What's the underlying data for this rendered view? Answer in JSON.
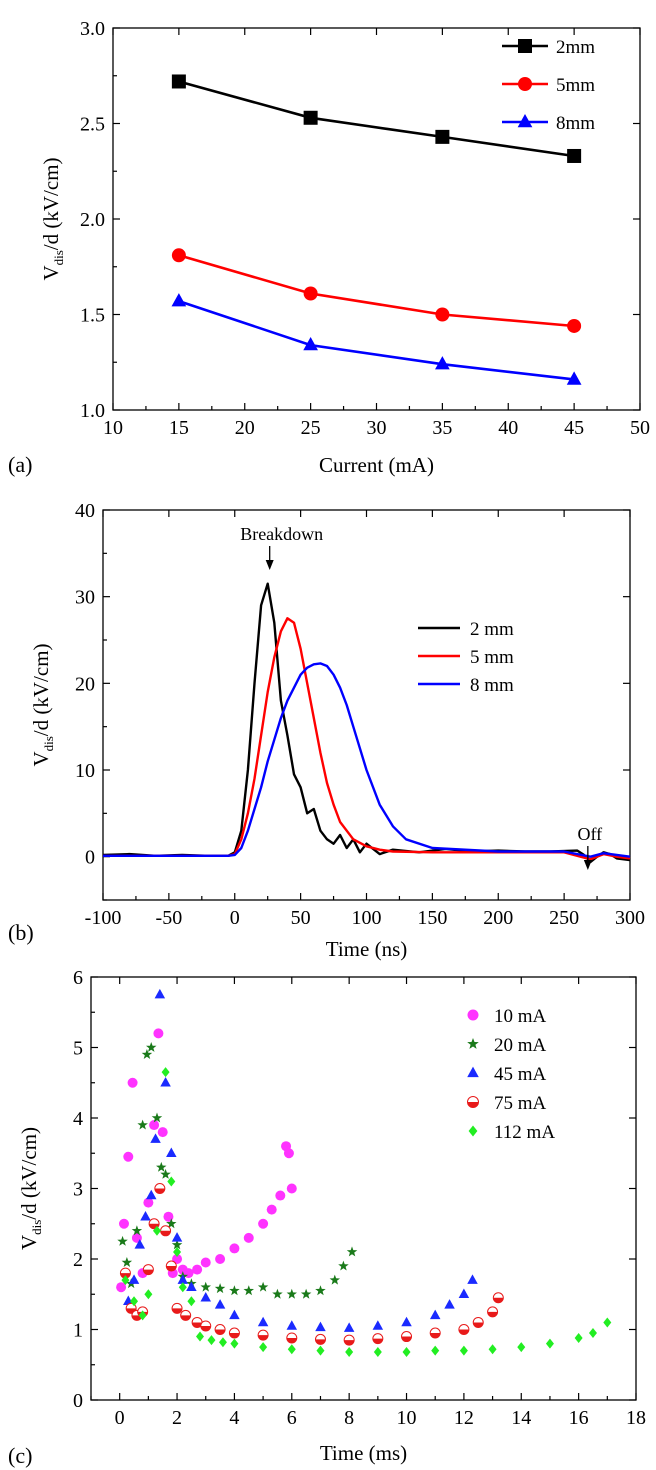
{
  "chart_data": [
    {
      "panel": "(a)",
      "type": "line",
      "xlabel": "Current (mA)",
      "ylabel_main": "V",
      "ylabel_sub": "dis",
      "ylabel_rest": "/d (kV/cm)",
      "xlim": [
        10,
        50
      ],
      "ylim": [
        1.0,
        3.0
      ],
      "xticks": [
        "10",
        "15",
        "20",
        "25",
        "30",
        "35",
        "40",
        "45",
        "50"
      ],
      "yticks": [
        "1.0",
        "1.5",
        "2.0",
        "2.5",
        "3.0"
      ],
      "legend_position": "top-right",
      "x": [
        15,
        25,
        35,
        45
      ],
      "series": [
        {
          "name": "2mm",
          "color": "#000000",
          "marker": "square",
          "values": [
            2.72,
            2.53,
            2.43,
            2.33
          ]
        },
        {
          "name": "5mm",
          "color": "#ff0000",
          "marker": "circle",
          "values": [
            1.81,
            1.61,
            1.5,
            1.44
          ]
        },
        {
          "name": "8mm",
          "color": "#0000ff",
          "marker": "triangle",
          "values": [
            1.57,
            1.34,
            1.24,
            1.16
          ]
        }
      ]
    },
    {
      "panel": "(b)",
      "type": "line",
      "xlabel": "Time (ns)",
      "ylabel_main": "V",
      "ylabel_sub": "dis",
      "ylabel_rest": "/d (kV/cm)",
      "xlim": [
        -100,
        300
      ],
      "ylim": [
        -5,
        40
      ],
      "xticks": [
        "-100",
        "-50",
        "0",
        "50",
        "100",
        "150",
        "200",
        "250",
        "300"
      ],
      "yticks": [
        "0",
        "10",
        "20",
        "30",
        "40"
      ],
      "legend_position": "center-right",
      "annotations": [
        {
          "text": "Breakdown",
          "x": 25,
          "y": 31.5
        },
        {
          "text": "Off",
          "x": 268,
          "y": 0
        }
      ],
      "series": [
        {
          "name": "2 mm",
          "color": "#000000",
          "x": [
            -100,
            -80,
            -60,
            -40,
            -20,
            -5,
            0,
            5,
            10,
            15,
            20,
            25,
            30,
            35,
            40,
            45,
            50,
            55,
            60,
            65,
            70,
            75,
            80,
            85,
            90,
            95,
            100,
            110,
            120,
            140,
            160,
            180,
            200,
            220,
            240,
            260,
            265,
            270,
            275,
            280,
            285,
            290,
            300
          ],
          "y": [
            0.2,
            0.3,
            0.1,
            0.2,
            0.1,
            0.1,
            0.5,
            3,
            10,
            20,
            29,
            31.5,
            27,
            18,
            14,
            9.5,
            8,
            5,
            5.5,
            3,
            2,
            1.5,
            2.5,
            1,
            2,
            0.5,
            1.5,
            0.3,
            0.8,
            0.5,
            0.9,
            0.6,
            0.7,
            0.6,
            0.6,
            0.7,
            0.2,
            -0.6,
            0,
            0.5,
            0.3,
            -0.2,
            -0.4
          ]
        },
        {
          "name": "5 mm",
          "color": "#ff0000",
          "x": [
            -100,
            -50,
            -5,
            0,
            5,
            10,
            15,
            20,
            25,
            30,
            35,
            40,
            45,
            50,
            55,
            60,
            65,
            70,
            75,
            80,
            90,
            100,
            110,
            120,
            150,
            200,
            250,
            270,
            280,
            290,
            300
          ],
          "y": [
            0.1,
            0.1,
            0.1,
            0.3,
            2,
            5,
            9,
            14,
            19,
            23,
            26,
            27.5,
            27,
            24,
            20,
            16,
            12,
            8.5,
            6,
            4,
            2,
            1.2,
            0.8,
            0.6,
            0.5,
            0.5,
            0.5,
            -0.3,
            0.3,
            0,
            -0.2
          ]
        },
        {
          "name": "8 mm",
          "color": "#0000ff",
          "x": [
            -100,
            -50,
            -5,
            0,
            5,
            10,
            15,
            20,
            25,
            30,
            35,
            40,
            45,
            50,
            55,
            60,
            65,
            70,
            75,
            80,
            85,
            90,
            95,
            100,
            110,
            120,
            130,
            150,
            200,
            250,
            270,
            280,
            300
          ],
          "y": [
            0.1,
            0.1,
            0.1,
            0.2,
            1,
            3,
            5.5,
            8,
            11,
            13.5,
            16,
            18,
            19.5,
            21,
            21.8,
            22.2,
            22.3,
            22,
            21,
            19.5,
            17.5,
            15,
            12.5,
            10,
            6,
            3.5,
            2,
            1,
            0.6,
            0.6,
            0,
            0.4,
            0
          ]
        }
      ]
    },
    {
      "panel": "(c)",
      "type": "scatter",
      "xlabel": "Time (ms)",
      "ylabel_main": "V",
      "ylabel_sub": "dis",
      "ylabel_rest": "/d (kV/cm)",
      "xlim": [
        -1,
        18
      ],
      "ylim": [
        0,
        6
      ],
      "xticks": [
        "0",
        "2",
        "4",
        "6",
        "8",
        "10",
        "12",
        "14",
        "16",
        "18"
      ],
      "yticks": [
        "0",
        "1",
        "2",
        "3",
        "4",
        "5",
        "6"
      ],
      "legend_position": "top-right",
      "series": [
        {
          "name": "10 mA",
          "color": "#ff33ff",
          "marker": "circle",
          "x": [
            0.05,
            0.15,
            0.3,
            0.45,
            0.6,
            0.8,
            1.0,
            1.2,
            1.35,
            1.5,
            1.7,
            1.85,
            2.0,
            2.2,
            2.4,
            2.7,
            3.0,
            3.5,
            4.0,
            4.5,
            5.0,
            5.3,
            5.6,
            5.8,
            5.9,
            6.0
          ],
          "y": [
            1.6,
            2.5,
            3.45,
            4.5,
            2.3,
            1.8,
            2.8,
            3.9,
            5.2,
            3.8,
            2.6,
            1.8,
            2.0,
            1.85,
            1.8,
            1.85,
            1.95,
            2.0,
            2.15,
            2.3,
            2.5,
            2.7,
            2.9,
            3.6,
            3.5,
            3.0
          ]
        },
        {
          "name": "20 mA",
          "color": "#1a7a1a",
          "marker": "star",
          "x": [
            0.1,
            0.25,
            0.4,
            0.6,
            0.8,
            0.95,
            1.1,
            1.3,
            1.45,
            1.6,
            1.8,
            2.0,
            2.2,
            2.5,
            3.0,
            3.5,
            4.0,
            4.5,
            5.0,
            5.5,
            6.0,
            6.5,
            7.0,
            7.5,
            7.8,
            8.1
          ],
          "y": [
            2.25,
            1.95,
            1.65,
            2.4,
            3.9,
            4.9,
            5.0,
            4.0,
            3.3,
            3.2,
            2.5,
            2.2,
            1.75,
            1.65,
            1.6,
            1.58,
            1.55,
            1.55,
            1.6,
            1.5,
            1.5,
            1.5,
            1.55,
            1.7,
            1.9,
            2.1
          ]
        },
        {
          "name": "45 mA",
          "color": "#1a2aff",
          "marker": "triangle",
          "x": [
            0.3,
            0.5,
            0.7,
            0.9,
            1.1,
            1.25,
            1.4,
            1.6,
            1.8,
            2.0,
            2.2,
            2.5,
            3.0,
            3.5,
            4.0,
            5.0,
            6.0,
            7.0,
            8.0,
            9.0,
            10.0,
            11.0,
            11.5,
            12.0,
            12.3
          ],
          "y": [
            1.4,
            1.7,
            2.2,
            2.6,
            2.9,
            3.7,
            5.75,
            4.5,
            3.5,
            2.3,
            1.7,
            1.6,
            1.45,
            1.35,
            1.2,
            1.1,
            1.05,
            1.03,
            1.02,
            1.05,
            1.1,
            1.2,
            1.35,
            1.5,
            1.7
          ]
        },
        {
          "name": "75 mA",
          "color": "#e81a1a",
          "marker": "circle-half",
          "x": [
            0.2,
            0.4,
            0.6,
            0.8,
            1.0,
            1.2,
            1.4,
            1.6,
            1.8,
            2.0,
            2.3,
            2.7,
            3.0,
            3.5,
            4.0,
            5.0,
            6.0,
            7.0,
            8.0,
            9.0,
            10.0,
            11.0,
            12.0,
            12.5,
            13.0,
            13.2
          ],
          "y": [
            1.8,
            1.3,
            1.2,
            1.25,
            1.85,
            2.5,
            3.0,
            2.4,
            1.9,
            1.3,
            1.2,
            1.1,
            1.05,
            1.0,
            0.95,
            0.92,
            0.88,
            0.86,
            0.85,
            0.87,
            0.9,
            0.95,
            1.0,
            1.1,
            1.25,
            1.45
          ]
        },
        {
          "name": "112 mA",
          "color": "#22ee22",
          "marker": "diamond",
          "x": [
            0.2,
            0.5,
            0.8,
            1.0,
            1.3,
            1.6,
            1.8,
            2.0,
            2.2,
            2.5,
            2.8,
            3.2,
            3.6,
            4.0,
            5.0,
            6.0,
            7.0,
            8.0,
            9.0,
            10.0,
            11.0,
            12.0,
            13.0,
            14.0,
            15.0,
            16.0,
            16.5,
            17.0
          ],
          "y": [
            1.7,
            1.4,
            1.2,
            1.5,
            2.4,
            4.65,
            3.1,
            2.1,
            1.6,
            1.4,
            0.9,
            0.85,
            0.82,
            0.8,
            0.75,
            0.72,
            0.7,
            0.68,
            0.68,
            0.68,
            0.7,
            0.7,
            0.72,
            0.75,
            0.8,
            0.88,
            0.95,
            1.1
          ]
        }
      ]
    }
  ]
}
